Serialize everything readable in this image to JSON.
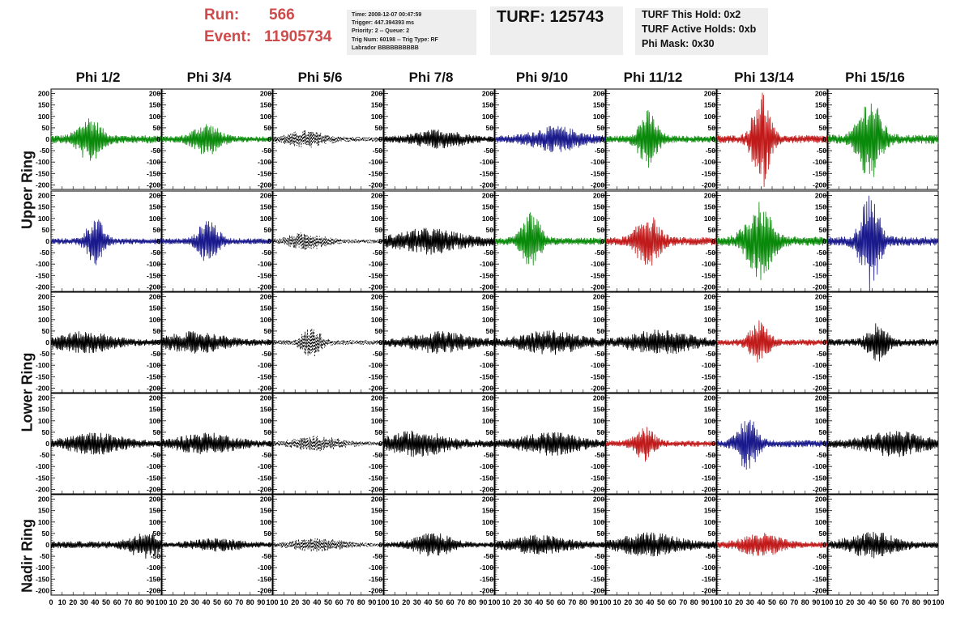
{
  "header": {
    "run_label": "Run:",
    "run_value": "566",
    "event_label": "Event:",
    "event_value": "11905734",
    "info_lines": [
      "Time: 2008-12-07 00:47:59",
      "Trigger: 447.394393 ms",
      "Priority: 2 -- Queue: 2",
      "Trig Num: 60198 -- Trig Type: RF",
      "Labrador BBBBBBBBBB"
    ],
    "turf_text": "TURF: 125743",
    "hold_lines": [
      "TURF This Hold: 0x2",
      "TURF Active Holds: 0xb",
      "Phi Mask: 0x30"
    ]
  },
  "columns": [
    "Phi 1/2",
    "Phi 3/4",
    "Phi 5/6",
    "Phi 7/8",
    "Phi 9/10",
    "Phi 11/12",
    "Phi 13/14",
    "Phi 15/16"
  ],
  "ring_labels": [
    "Upper Ring",
    "Lower Ring",
    "Nadir Ring"
  ],
  "colors": {
    "green": "#0a8a0a",
    "blue": "#1a1a8c",
    "red": "#c01a1a",
    "black": "#000000",
    "header_red": "#cf4a4a",
    "info_bg": "#eeeeee"
  },
  "chart_data": {
    "type": "line",
    "ylim": [
      -220,
      220
    ],
    "xlim": [
      0,
      100
    ],
    "y_ticks": [
      200,
      150,
      100,
      50,
      0,
      -50,
      -100,
      -150,
      -200
    ],
    "x_ticks": [
      0,
      10,
      20,
      30,
      40,
      50,
      60,
      70,
      80,
      90,
      100
    ],
    "x_tick_labels": [
      "0",
      "10",
      "20",
      "30",
      "40",
      "50",
      "60",
      "70",
      "80",
      "90",
      "100"
    ],
    "rows": [
      [
        {
          "color": "green",
          "amp": 40,
          "peak": 105,
          "peak_at": 35,
          "width": 12,
          "style": "solid"
        },
        {
          "color": "green",
          "amp": 30,
          "peak": 75,
          "peak_at": 40,
          "width": 14,
          "style": "solid"
        },
        {
          "color": "black",
          "amp": 25,
          "peak": 40,
          "peak_at": 30,
          "width": 20,
          "style": "dashed"
        },
        {
          "color": "black",
          "amp": 30,
          "peak": 45,
          "peak_at": 50,
          "width": 25,
          "style": "solid"
        },
        {
          "color": "blue",
          "amp": 35,
          "peak": 60,
          "peak_at": 55,
          "width": 25,
          "style": "solid"
        },
        {
          "color": "green",
          "amp": 35,
          "peak": 130,
          "peak_at": 38,
          "width": 10,
          "style": "solid"
        },
        {
          "color": "red",
          "amp": 40,
          "peak": 230,
          "peak_at": 40,
          "width": 9,
          "style": "solid"
        },
        {
          "color": "green",
          "amp": 45,
          "peak": 190,
          "peak_at": 38,
          "width": 12,
          "style": "solid"
        }
      ],
      [
        {
          "color": "blue",
          "amp": 30,
          "peak": 110,
          "peak_at": 40,
          "width": 9,
          "style": "solid"
        },
        {
          "color": "blue",
          "amp": 30,
          "peak": 110,
          "peak_at": 42,
          "width": 10,
          "style": "solid"
        },
        {
          "color": "black",
          "amp": 20,
          "peak": 40,
          "peak_at": 30,
          "width": 20,
          "style": "dashed"
        },
        {
          "color": "black",
          "amp": 45,
          "peak": 60,
          "peak_at": 40,
          "width": 30,
          "style": "solid"
        },
        {
          "color": "green",
          "amp": 35,
          "peak": 130,
          "peak_at": 33,
          "width": 10,
          "style": "solid"
        },
        {
          "color": "red",
          "amp": 40,
          "peak": 125,
          "peak_at": 38,
          "width": 12,
          "style": "solid"
        },
        {
          "color": "green",
          "amp": 45,
          "peak": 175,
          "peak_at": 38,
          "width": 14,
          "style": "solid"
        },
        {
          "color": "blue",
          "amp": 45,
          "peak": 220,
          "peak_at": 38,
          "width": 10,
          "style": "solid"
        }
      ],
      [
        {
          "color": "black",
          "amp": 30,
          "peak": 50,
          "peak_at": 30,
          "width": 30,
          "style": "solid"
        },
        {
          "color": "black",
          "amp": 30,
          "peak": 50,
          "peak_at": 30,
          "width": 30,
          "style": "solid"
        },
        {
          "color": "black",
          "amp": 25,
          "peak": 70,
          "peak_at": 35,
          "width": 10,
          "style": "dashed"
        },
        {
          "color": "black",
          "amp": 35,
          "peak": 50,
          "peak_at": 50,
          "width": 30,
          "style": "solid"
        },
        {
          "color": "black",
          "amp": 35,
          "peak": 55,
          "peak_at": 50,
          "width": 30,
          "style": "solid"
        },
        {
          "color": "black",
          "amp": 35,
          "peak": 60,
          "peak_at": 50,
          "width": 30,
          "style": "solid"
        },
        {
          "color": "red",
          "amp": 30,
          "peak": 100,
          "peak_at": 38,
          "width": 10,
          "style": "solid"
        },
        {
          "color": "black",
          "amp": 35,
          "peak": 90,
          "peak_at": 45,
          "width": 10,
          "style": "solid"
        }
      ],
      [
        {
          "color": "black",
          "amp": 30,
          "peak": 50,
          "peak_at": 40,
          "width": 30,
          "style": "solid"
        },
        {
          "color": "black",
          "amp": 30,
          "peak": 50,
          "peak_at": 40,
          "width": 30,
          "style": "solid"
        },
        {
          "color": "black",
          "amp": 20,
          "peak": 35,
          "peak_at": 40,
          "width": 25,
          "style": "dashed"
        },
        {
          "color": "black",
          "amp": 35,
          "peak": 60,
          "peak_at": 30,
          "width": 30,
          "style": "solid"
        },
        {
          "color": "black",
          "amp": 30,
          "peak": 55,
          "peak_at": 50,
          "width": 30,
          "style": "solid"
        },
        {
          "color": "red",
          "amp": 30,
          "peak": 80,
          "peak_at": 35,
          "width": 10,
          "style": "solid"
        },
        {
          "color": "blue",
          "amp": 35,
          "peak": 130,
          "peak_at": 28,
          "width": 10,
          "style": "solid"
        },
        {
          "color": "black",
          "amp": 35,
          "peak": 60,
          "peak_at": 60,
          "width": 30,
          "style": "solid"
        }
      ],
      [
        {
          "color": "black",
          "amp": 35,
          "peak": 65,
          "peak_at": 85,
          "width": 15,
          "style": "solid"
        },
        {
          "color": "black",
          "amp": 20,
          "peak": 30,
          "peak_at": 50,
          "width": 30,
          "style": "solid"
        },
        {
          "color": "black",
          "amp": 20,
          "peak": 35,
          "peak_at": 40,
          "width": 25,
          "style": "dashed"
        },
        {
          "color": "black",
          "amp": 25,
          "peak": 55,
          "peak_at": 45,
          "width": 20,
          "style": "solid"
        },
        {
          "color": "black",
          "amp": 30,
          "peak": 45,
          "peak_at": 40,
          "width": 30,
          "style": "solid"
        },
        {
          "color": "black",
          "amp": 35,
          "peak": 55,
          "peak_at": 40,
          "width": 30,
          "style": "solid"
        },
        {
          "color": "red",
          "amp": 30,
          "peak": 55,
          "peak_at": 40,
          "width": 20,
          "style": "solid"
        },
        {
          "color": "black",
          "amp": 30,
          "peak": 60,
          "peak_at": 40,
          "width": 25,
          "style": "solid"
        }
      ]
    ]
  }
}
